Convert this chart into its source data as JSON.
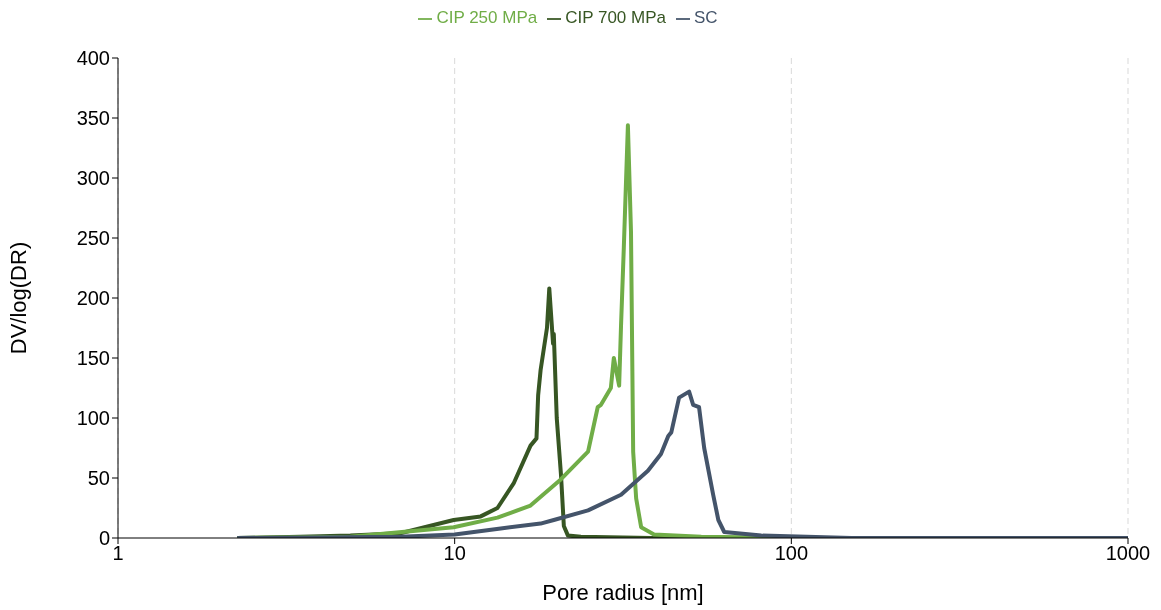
{
  "chart_data": {
    "type": "line",
    "xlabel": "Pore radius [nm]",
    "ylabel": "DV/log(DR)",
    "log": "x",
    "xlim": [
      1,
      1000
    ],
    "xticks": [
      1,
      10,
      100,
      1000
    ],
    "ylim": [
      0,
      400
    ],
    "yticks": [
      0,
      50,
      100,
      150,
      200,
      250,
      300,
      350,
      400
    ],
    "grid": "x",
    "legend": "top",
    "marker": "none",
    "line_style": "solid",
    "series": [
      {
        "name": "CIP 700 MPa",
        "color": "#375623",
        "x": [
          2.26,
          3.48,
          4.9,
          6.9,
          9.93,
          11.95,
          13.4,
          15.0,
          16.8,
          17.5,
          17.7,
          18.0,
          18.8,
          19.1,
          19.6,
          19.7,
          20.1,
          20.7,
          21.1,
          21.7,
          23.7,
          38.3,
          1000
        ],
        "values": [
          0,
          1,
          2,
          4,
          15,
          18,
          25,
          46,
          77,
          83,
          119,
          140,
          175,
          208,
          162,
          170,
          100,
          52,
          10,
          2,
          1,
          0,
          0
        ]
      },
      {
        "name": "CIP 250 MPa",
        "color": "#70ad47",
        "x": [
          2.26,
          4.9,
          9.93,
          13.4,
          16.8,
          20.7,
          24.9,
          26.6,
          27.2,
          29.1,
          29.7,
          30.8,
          31.2,
          31.8,
          32.7,
          33.4,
          33.9,
          34.6,
          35.8,
          39.1,
          54.0,
          107,
          1000
        ],
        "values": [
          0,
          1,
          9,
          17,
          27,
          49,
          72,
          109,
          111,
          125,
          150,
          127,
          177,
          242,
          344,
          255,
          72,
          33,
          9,
          3,
          1,
          0,
          0
        ]
      },
      {
        "name": "SC",
        "color": "#44546a",
        "x": [
          2.26,
          6.9,
          10.0,
          13.7,
          18.0,
          19.7,
          24.9,
          31.2,
          37.5,
          41.0,
          43.1,
          44.0,
          46.4,
          49.7,
          51.1,
          53.2,
          55.1,
          58.6,
          60.7,
          63.2,
          81.4,
          151,
          1000
        ],
        "values": [
          0,
          1,
          3,
          8,
          12,
          15,
          23,
          36,
          56,
          70,
          85,
          88,
          117,
          122,
          111,
          109,
          75,
          36,
          15,
          5,
          2,
          0,
          0
        ]
      }
    ]
  }
}
